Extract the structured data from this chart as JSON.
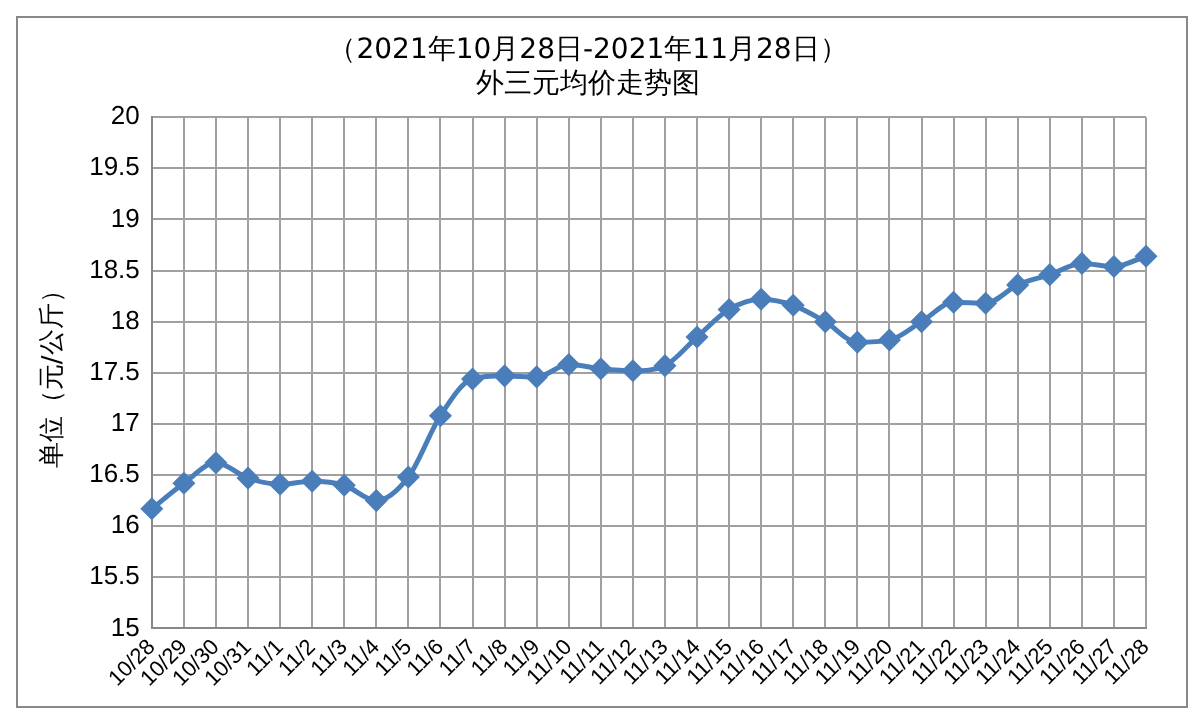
{
  "chart_data": {
    "type": "line",
    "title": "（2021年10月28日-2021年11月28日）",
    "subtitle": "外三元均价走势图",
    "ylabel": "单位（元/公斤）",
    "categories": [
      "10/28",
      "10/29",
      "10/30",
      "10/31",
      "11/1",
      "11/2",
      "11/3",
      "11/4",
      "11/5",
      "11/6",
      "11/7",
      "11/8",
      "11/9",
      "11/10",
      "11/11",
      "11/12",
      "11/13",
      "11/14",
      "11/15",
      "11/16",
      "11/17",
      "11/18",
      "11/19",
      "11/20",
      "11/21",
      "11/22",
      "11/23",
      "11/24",
      "11/25",
      "11/26",
      "11/27",
      "11/28"
    ],
    "series": [
      {
        "color": "#4a7ebb",
        "values": [
          16.17,
          16.42,
          16.62,
          16.47,
          16.41,
          16.44,
          16.4,
          16.25,
          16.48,
          17.08,
          17.44,
          17.47,
          17.46,
          17.58,
          17.54,
          17.52,
          17.57,
          17.85,
          18.12,
          18.22,
          18.16,
          18.0,
          17.8,
          17.82,
          18.0,
          18.19,
          18.18,
          18.36,
          18.46,
          18.57,
          18.54,
          18.64
        ]
      }
    ],
    "ylim": [
      15,
      20
    ],
    "yticks": [
      15,
      15.5,
      16,
      16.5,
      17,
      17.5,
      18,
      18.5,
      19,
      19.5,
      20
    ],
    "grid": true,
    "marker": "diamond",
    "legend": false
  }
}
